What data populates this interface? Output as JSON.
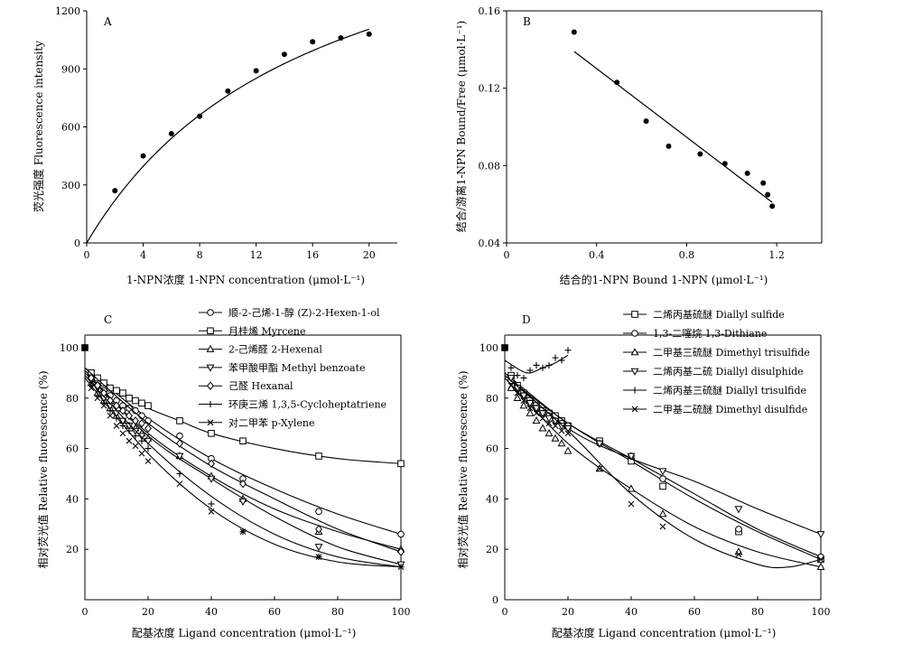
{
  "chart_data": [
    {
      "panel": "A",
      "type": "scatter",
      "xlabel": "1-NPN浓度 1-NPN concentration (μmol·L⁻¹)",
      "ylabel": "荧光强度 Fluorescence intensity",
      "xlim": [
        0,
        22
      ],
      "ylim": [
        0,
        1200
      ],
      "xticks": [
        0,
        4,
        8,
        12,
        16,
        20
      ],
      "yticks": [
        0,
        300,
        600,
        900,
        1200
      ],
      "xtick_labels": [
        "0",
        "4",
        "8",
        "12",
        "16",
        "20"
      ],
      "ytick_labels": [
        "0",
        "300",
        "600",
        "900",
        "1200"
      ],
      "series": [
        {
          "marker": "dot",
          "x": [
            2,
            4,
            6,
            8,
            10,
            12,
            14,
            16,
            18,
            20
          ],
          "y": [
            270,
            450,
            565,
            655,
            785,
            890,
            975,
            1040,
            1060,
            1080
          ]
        }
      ],
      "fit": {
        "kind": "hyperbola",
        "bmax": 2000,
        "kd": 16.2,
        "x_range": [
          0,
          20
        ]
      }
    },
    {
      "panel": "B",
      "type": "scatter",
      "xlabel": "结合的1-NPN Bound 1-NPN (μmol·L⁻¹)",
      "ylabel": "结合/游离1-NPN Bound/Free (μmol·L⁻¹)",
      "xlim": [
        0,
        1.4
      ],
      "ylim": [
        0.04,
        0.16
      ],
      "xticks": [
        0,
        0.4,
        0.8,
        1.2
      ],
      "yticks": [
        0.04,
        0.08,
        0.12,
        0.16
      ],
      "xtick_labels": [
        "0",
        "0.4",
        "0.8",
        "1.2"
      ],
      "ytick_labels": [
        "0.04",
        "0.08",
        "0.12",
        "0.16"
      ],
      "series": [
        {
          "marker": "dot",
          "x": [
            0.3,
            0.49,
            0.62,
            0.72,
            0.86,
            0.97,
            1.07,
            1.14,
            1.16,
            1.18
          ],
          "y": [
            0.149,
            0.123,
            0.103,
            0.09,
            0.086,
            0.081,
            0.076,
            0.071,
            0.065,
            0.059
          ]
        }
      ],
      "fit": {
        "kind": "line",
        "x_range": [
          0.3,
          1.18
        ],
        "y_range": [
          0.139,
          0.061
        ]
      }
    },
    {
      "panel": "C",
      "type": "line",
      "xlabel": "配基浓度 Ligand concentration (μmol·L⁻¹)",
      "ylabel": "相对荧光值 Relative fluorescence (%)",
      "xlim": [
        0,
        100
      ],
      "ylim": [
        0,
        105
      ],
      "xticks": [
        0,
        20,
        40,
        60,
        80,
        100
      ],
      "yticks": [
        20,
        40,
        60,
        80,
        100
      ],
      "xtick_labels": [
        "0",
        "20",
        "40",
        "60",
        "80",
        "100"
      ],
      "ytick_labels": [
        "20",
        "40",
        "60",
        "80",
        "100"
      ],
      "start_point": {
        "x": 0,
        "y": 100
      },
      "series": [
        {
          "name": "顺-2-己烯-1-醇 (Z)-2-Hexen-1-ol",
          "marker": "circle",
          "x": [
            2,
            4,
            6,
            8,
            10,
            12,
            14,
            16,
            18,
            20,
            30,
            40,
            50,
            74,
            100
          ],
          "y": [
            88,
            85,
            83,
            81,
            79,
            77,
            76,
            75,
            73,
            71,
            65,
            56,
            48,
            35,
            26
          ],
          "fit": [
            [
              0,
              92
            ],
            [
              20,
              72
            ],
            [
              40,
              56
            ],
            [
              60,
              44
            ],
            [
              80,
              34
            ],
            [
              100,
              26
            ]
          ]
        },
        {
          "name": "月桂烯 Myrcene",
          "marker": "square",
          "x": [
            2,
            4,
            6,
            8,
            10,
            12,
            14,
            16,
            18,
            20,
            30,
            40,
            50,
            74,
            100
          ],
          "y": [
            90,
            88,
            86,
            84,
            83,
            82,
            80,
            79,
            78,
            77,
            71,
            66,
            63,
            57,
            54
          ],
          "fit": [
            [
              0,
              92
            ],
            [
              10,
              83
            ],
            [
              20,
              76
            ],
            [
              30,
              71
            ],
            [
              40,
              66
            ],
            [
              60,
              60
            ],
            [
              80,
              56
            ],
            [
              100,
              54
            ]
          ]
        },
        {
          "name": "2-己烯醛 2-Hexenal",
          "marker": "triangle",
          "x": [
            2,
            4,
            6,
            8,
            10,
            12,
            14,
            16,
            18,
            20,
            30,
            40,
            50,
            74,
            100
          ],
          "y": [
            86,
            82,
            79,
            76,
            73,
            71,
            69,
            68,
            66,
            64,
            57,
            49,
            40,
            27,
            20
          ],
          "fit": [
            [
              0,
              90
            ],
            [
              20,
              66
            ],
            [
              40,
              49
            ],
            [
              60,
              36
            ],
            [
              80,
              27
            ],
            [
              100,
              20
            ]
          ]
        },
        {
          "name": "苯甲酸甲酯 Methyl benzoate",
          "marker": "triangle-down",
          "x": [
            2,
            4,
            6,
            8,
            10,
            12,
            14,
            16,
            18,
            20,
            30,
            40,
            50,
            74,
            100
          ],
          "y": [
            87,
            84,
            80,
            77,
            74,
            71,
            69,
            67,
            65,
            63,
            57,
            48,
            39,
            21,
            14
          ],
          "fit": [
            [
              0,
              91
            ],
            [
              20,
              65
            ],
            [
              40,
              48
            ],
            [
              60,
              33
            ],
            [
              80,
              21
            ],
            [
              100,
              14
            ]
          ]
        },
        {
          "name": "己醛 Hexanal",
          "marker": "diamond",
          "x": [
            2,
            4,
            6,
            8,
            10,
            12,
            14,
            16,
            18,
            20,
            30,
            40,
            50,
            74,
            100
          ],
          "y": [
            88,
            85,
            82,
            79,
            77,
            75,
            73,
            71,
            70,
            68,
            62,
            54,
            46,
            28,
            19
          ],
          "fit": [
            [
              0,
              92
            ],
            [
              20,
              70
            ],
            [
              40,
              53
            ],
            [
              60,
              40
            ],
            [
              80,
              28
            ],
            [
              100,
              19
            ]
          ]
        },
        {
          "name": "环庚三烯 1,3,5-Cycloheptatriene",
          "marker": "plus",
          "x": [
            2,
            4,
            6,
            8,
            10,
            12,
            14,
            16,
            18,
            20,
            30,
            40,
            50,
            74,
            100
          ],
          "y": [
            85,
            81,
            78,
            75,
            72,
            69,
            67,
            65,
            63,
            60,
            50,
            38,
            27,
            17,
            13
          ],
          "fit": [
            [
              0,
              89
            ],
            [
              20,
              62
            ],
            [
              40,
              41
            ],
            [
              60,
              26
            ],
            [
              80,
              17
            ],
            [
              100,
              13
            ]
          ]
        },
        {
          "name": "对二甲苯 p-Xylene",
          "marker": "x",
          "x": [
            2,
            4,
            6,
            8,
            10,
            12,
            14,
            16,
            18,
            20,
            30,
            40,
            50,
            74,
            100
          ],
          "y": [
            84,
            80,
            77,
            73,
            69,
            66,
            63,
            61,
            58,
            55,
            46,
            35,
            27,
            17,
            13
          ],
          "fit": [
            [
              0,
              88
            ],
            [
              20,
              58
            ],
            [
              40,
              36
            ],
            [
              60,
              22
            ],
            [
              80,
              15
            ],
            [
              100,
              13
            ]
          ]
        }
      ]
    },
    {
      "panel": "D",
      "type": "line",
      "xlabel": "配基浓度 Ligand concentration (μmol·L⁻¹)",
      "ylabel": "相对荧光值 Relative fluorescence (%)",
      "xlim": [
        0,
        100
      ],
      "ylim": [
        0,
        105
      ],
      "xticks": [
        0,
        20,
        40,
        60,
        80,
        100
      ],
      "yticks": [
        0,
        20,
        40,
        60,
        80,
        100
      ],
      "xtick_labels": [
        "0",
        "20",
        "40",
        "60",
        "80",
        "100"
      ],
      "ytick_labels": [
        "0",
        "20",
        "40",
        "60",
        "80",
        "100"
      ],
      "start_point": {
        "x": 0,
        "y": 100
      },
      "series": [
        {
          "name": "二烯丙基硫醚 Diallyl sulfide",
          "marker": "square",
          "x": [
            2,
            4,
            6,
            8,
            10,
            12,
            14,
            16,
            18,
            20,
            30,
            40,
            50,
            74,
            100
          ],
          "y": [
            89,
            85,
            82,
            79,
            77,
            75,
            74,
            73,
            71,
            69,
            63,
            55,
            45,
            27,
            16
          ],
          "fit": [
            [
              0,
              90
            ],
            [
              20,
              70
            ],
            [
              40,
              55
            ],
            [
              60,
              40
            ],
            [
              80,
              27
            ],
            [
              100,
              16
            ]
          ]
        },
        {
          "name": "1,3-二噻烷 1,3-Dithiane",
          "marker": "circle",
          "x": [
            2,
            4,
            6,
            8,
            10,
            12,
            14,
            16,
            18,
            20,
            30,
            40,
            50,
            74,
            100
          ],
          "y": [
            87,
            84,
            81,
            78,
            76,
            74,
            73,
            71,
            70,
            69,
            62,
            57,
            48,
            28,
            17
          ],
          "fit": [
            [
              0,
              89
            ],
            [
              20,
              70
            ],
            [
              40,
              56
            ],
            [
              60,
              42
            ],
            [
              80,
              28
            ],
            [
              100,
              17
            ]
          ]
        },
        {
          "name": "二甲基三硫醚 Dimethyl trisulfide",
          "marker": "triangle",
          "x": [
            2,
            4,
            6,
            8,
            10,
            12,
            14,
            16,
            18,
            20,
            30,
            40,
            50,
            74,
            100
          ],
          "y": [
            84,
            80,
            77,
            74,
            71,
            68,
            66,
            64,
            62,
            59,
            52,
            44,
            34,
            19,
            13
          ],
          "fit": [
            [
              0,
              88
            ],
            [
              20,
              62
            ],
            [
              40,
              44
            ],
            [
              60,
              29
            ],
            [
              80,
              19
            ],
            [
              100,
              13
            ]
          ]
        },
        {
          "name": "二烯丙基二硫 Diallyl disulphide",
          "marker": "triangle-down",
          "x": [
            2,
            4,
            6,
            8,
            10,
            12,
            14,
            16,
            18,
            20,
            30,
            40,
            50,
            74,
            100
          ],
          "y": [
            88,
            84,
            81,
            78,
            76,
            74,
            72,
            71,
            69,
            68,
            62,
            57,
            51,
            36,
            26
          ],
          "fit": [
            [
              0,
              90
            ],
            [
              20,
              68
            ],
            [
              40,
              56
            ],
            [
              60,
              47
            ],
            [
              80,
              36
            ],
            [
              100,
              26
            ]
          ]
        },
        {
          "name": "二烯丙基三硫醚 Diallyl trisulfide",
          "marker": "plus",
          "x": [
            2,
            4,
            6,
            8,
            10,
            12,
            14,
            16,
            18,
            20
          ],
          "y": [
            92,
            89,
            88,
            91,
            93,
            92,
            93,
            96,
            95,
            99
          ],
          "fit": [
            [
              0,
              95
            ],
            [
              5,
              91
            ],
            [
              8,
              90
            ],
            [
              12,
              92
            ],
            [
              16,
              94
            ],
            [
              20,
              97
            ]
          ]
        },
        {
          "name": "二甲基二硫醚 Dimethyl disulfide",
          "marker": "x",
          "x": [
            2,
            4,
            6,
            8,
            10,
            12,
            14,
            16,
            18,
            20,
            30,
            40,
            50,
            74,
            100
          ],
          "y": [
            85,
            82,
            79,
            76,
            74,
            72,
            70,
            69,
            67,
            66,
            52,
            38,
            29,
            18,
            16
          ],
          "fit": [
            [
              0,
              89
            ],
            [
              20,
              67
            ],
            [
              40,
              42
            ],
            [
              60,
              24
            ],
            [
              80,
              14
            ],
            [
              90,
              13
            ],
            [
              100,
              16
            ]
          ]
        }
      ]
    }
  ]
}
